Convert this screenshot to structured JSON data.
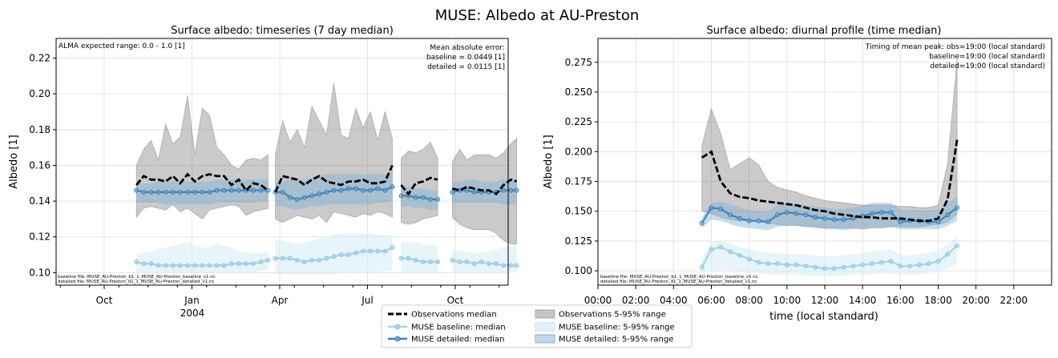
{
  "suptitle": "MUSE: Albedo at AU-Preston",
  "colors": {
    "obs": "#000000",
    "obs_band": "#808080",
    "baseline": "#a6d4e8",
    "baseline_band": "#d7ecf5",
    "detailed": "#3a86bf",
    "detailed_band": "#7fb1d6",
    "grid": "#e3e3e3"
  },
  "legend": {
    "obs_median": "Observations median",
    "baseline_median": "MUSE baseline: median",
    "detailed_median": "MUSE detailed: median",
    "obs_range": "Observations 5-95% range",
    "baseline_range": "MUSE baseline: 5-95% range",
    "detailed_range": "MUSE detailed: 5-95% range"
  },
  "chart_data": [
    {
      "type": "line",
      "title": "Surface albedo: timeseries (7 day median)",
      "xlabel": "",
      "ylabel": "Albedo [1]",
      "ylim": [
        0.093,
        0.231
      ],
      "yticks": [
        0.1,
        0.12,
        0.14,
        0.16,
        0.18,
        0.2,
        0.22
      ],
      "ytick_labels": [
        "0.10",
        "0.12",
        "0.14",
        "0.16",
        "0.18",
        "0.20",
        "0.22"
      ],
      "xticks": [
        {
          "label": "Oct",
          "month": 0
        },
        {
          "label": "Jan",
          "month": 3
        },
        {
          "label": "Apr",
          "month": 6
        },
        {
          "label": "Jul",
          "month": 9
        },
        {
          "label": "Oct",
          "month": 12
        }
      ],
      "year_label": "2004",
      "grid": true,
      "annot_left": "ALMA expected range: 0.0 - 1.0 [1]",
      "annot_right": [
        "Mean absolute error:",
        "baseline = 0.0449 [1]",
        "detailed = 0.0115 [1]"
      ],
      "files": [
        "baseline file: MUSE_AU-Preston_b1_1_MUSE_AU-Preston_baseline_v1.nc",
        "detailed file: MUSE_AU-Preston_d1_1_MUSE_AU-Preston_detailed_v1.nc"
      ],
      "segments": [
        {
          "x": [
            1.1,
            1.35,
            1.6,
            1.85,
            2.1,
            2.35,
            2.6,
            2.85,
            3.1,
            3.35,
            3.6,
            3.85,
            4.1,
            4.35,
            4.6,
            4.85,
            5.1,
            5.35,
            5.6
          ],
          "obs": [
            0.149,
            0.154,
            0.152,
            0.152,
            0.151,
            0.154,
            0.15,
            0.155,
            0.151,
            0.154,
            0.155,
            0.154,
            0.154,
            0.149,
            0.152,
            0.146,
            0.15,
            0.149,
            0.146
          ],
          "obs_lo": [
            0.131,
            0.136,
            0.137,
            0.136,
            0.135,
            0.138,
            0.134,
            0.136,
            0.133,
            0.13,
            0.135,
            0.136,
            0.137,
            0.138,
            0.137,
            0.132,
            0.134,
            0.135,
            0.136
          ],
          "obs_hi": [
            0.16,
            0.169,
            0.174,
            0.163,
            0.183,
            0.172,
            0.176,
            0.199,
            0.166,
            0.192,
            0.188,
            0.17,
            0.166,
            0.16,
            0.158,
            0.163,
            0.164,
            0.163,
            0.166
          ],
          "det": [
            0.146,
            0.145,
            0.145,
            0.145,
            0.145,
            0.145,
            0.145,
            0.145,
            0.145,
            0.145,
            0.145,
            0.146,
            0.146,
            0.146,
            0.146,
            0.146,
            0.146,
            0.146,
            0.146
          ],
          "det_lo": [
            0.139,
            0.139,
            0.139,
            0.139,
            0.138,
            0.138,
            0.138,
            0.138,
            0.138,
            0.138,
            0.138,
            0.139,
            0.139,
            0.139,
            0.139,
            0.139,
            0.139,
            0.14,
            0.14
          ],
          "det_hi": [
            0.15,
            0.15,
            0.15,
            0.151,
            0.151,
            0.151,
            0.151,
            0.151,
            0.151,
            0.151,
            0.151,
            0.152,
            0.152,
            0.152,
            0.152,
            0.152,
            0.152,
            0.152,
            0.152
          ],
          "base": [
            0.106,
            0.105,
            0.105,
            0.104,
            0.104,
            0.104,
            0.104,
            0.104,
            0.104,
            0.104,
            0.104,
            0.104,
            0.104,
            0.105,
            0.105,
            0.105,
            0.105,
            0.106,
            0.107
          ],
          "base_lo": [
            0.1,
            0.1,
            0.1,
            0.1,
            0.1,
            0.1,
            0.1,
            0.1,
            0.1,
            0.1,
            0.1,
            0.1,
            0.1,
            0.1,
            0.1,
            0.1,
            0.1,
            0.101,
            0.101
          ],
          "base_hi": [
            0.11,
            0.111,
            0.112,
            0.113,
            0.114,
            0.115,
            0.116,
            0.117,
            0.115,
            0.114,
            0.114,
            0.116,
            0.115,
            0.114,
            0.112,
            0.111,
            0.111,
            0.111,
            0.112
          ]
        },
        {
          "x": [
            5.85,
            6.1,
            6.35,
            6.6,
            6.85,
            7.1,
            7.35,
            7.6,
            7.85,
            8.1,
            8.35,
            8.6,
            8.85,
            9.1,
            9.35,
            9.6,
            9.85
          ],
          "obs": [
            0.145,
            0.154,
            0.153,
            0.152,
            0.149,
            0.152,
            0.154,
            0.151,
            0.15,
            0.149,
            0.151,
            0.151,
            0.152,
            0.15,
            0.15,
            0.151,
            0.16
          ],
          "obs_lo": [
            0.13,
            0.128,
            0.13,
            0.132,
            0.131,
            0.13,
            0.132,
            0.128,
            0.134,
            0.133,
            0.132,
            0.131,
            0.133,
            0.132,
            0.134,
            0.133,
            0.131
          ],
          "obs_hi": [
            0.166,
            0.185,
            0.173,
            0.18,
            0.17,
            0.193,
            0.185,
            0.177,
            0.206,
            0.177,
            0.175,
            0.192,
            0.181,
            0.19,
            0.174,
            0.19,
            0.175
          ],
          "det": [
            0.145,
            0.145,
            0.142,
            0.141,
            0.142,
            0.143,
            0.144,
            0.145,
            0.146,
            0.146,
            0.147,
            0.147,
            0.146,
            0.146,
            0.147,
            0.146,
            0.148
          ],
          "det_lo": [
            0.137,
            0.137,
            0.136,
            0.135,
            0.136,
            0.137,
            0.137,
            0.138,
            0.138,
            0.138,
            0.138,
            0.138,
            0.138,
            0.138,
            0.139,
            0.139,
            0.14
          ],
          "det_hi": [
            0.151,
            0.151,
            0.152,
            0.152,
            0.152,
            0.153,
            0.154,
            0.155,
            0.155,
            0.155,
            0.155,
            0.155,
            0.155,
            0.155,
            0.155,
            0.155,
            0.156
          ],
          "base": [
            0.108,
            0.108,
            0.108,
            0.107,
            0.106,
            0.107,
            0.107,
            0.108,
            0.109,
            0.11,
            0.11,
            0.111,
            0.112,
            0.112,
            0.112,
            0.112,
            0.114
          ],
          "base_lo": [
            0.099,
            0.099,
            0.099,
            0.099,
            0.099,
            0.099,
            0.099,
            0.099,
            0.099,
            0.1,
            0.1,
            0.1,
            0.1,
            0.1,
            0.1,
            0.101,
            0.101
          ],
          "base_hi": [
            0.118,
            0.118,
            0.117,
            0.116,
            0.117,
            0.118,
            0.119,
            0.12,
            0.121,
            0.122,
            0.122,
            0.122,
            0.122,
            0.122,
            0.121,
            0.121,
            0.121
          ]
        },
        {
          "x": [
            10.15,
            10.4,
            10.65,
            10.9,
            11.15,
            11.4
          ],
          "obs": [
            0.149,
            0.144,
            0.15,
            0.151,
            0.153,
            0.152
          ],
          "obs_lo": [
            0.128,
            0.127,
            0.128,
            0.13,
            0.131,
            0.132
          ],
          "obs_hi": [
            0.164,
            0.168,
            0.167,
            0.169,
            0.173,
            0.164
          ],
          "det": [
            0.143,
            0.143,
            0.142,
            0.142,
            0.141,
            0.141
          ],
          "det_lo": [
            0.137,
            0.137,
            0.136,
            0.136,
            0.135,
            0.135
          ],
          "det_hi": [
            0.147,
            0.148,
            0.147,
            0.147,
            0.146,
            0.146
          ],
          "base": [
            0.108,
            0.108,
            0.107,
            0.106,
            0.106,
            0.106
          ],
          "base_lo": [
            0.101,
            0.1,
            0.1,
            0.1,
            0.1,
            0.1
          ],
          "base_hi": [
            0.117,
            0.117,
            0.117,
            0.116,
            0.115,
            0.115
          ]
        },
        {
          "x": [
            11.9,
            12.15,
            12.4,
            12.65,
            12.9,
            13.15,
            13.4,
            13.65,
            13.9,
            14.1
          ],
          "obs": [
            0.147,
            0.146,
            0.148,
            0.147,
            0.146,
            0.146,
            0.144,
            0.149,
            0.152,
            0.151
          ],
          "obs_lo": [
            0.131,
            0.127,
            0.125,
            0.124,
            0.124,
            0.124,
            0.122,
            0.118,
            0.116,
            0.116
          ],
          "obs_hi": [
            0.162,
            0.169,
            0.163,
            0.166,
            0.166,
            0.166,
            0.164,
            0.167,
            0.172,
            0.175
          ],
          "det": [
            0.145,
            0.146,
            0.146,
            0.145,
            0.145,
            0.145,
            0.145,
            0.146,
            0.146,
            0.146
          ],
          "det_lo": [
            0.139,
            0.139,
            0.139,
            0.139,
            0.139,
            0.139,
            0.139,
            0.138,
            0.138,
            0.138
          ],
          "det_hi": [
            0.151,
            0.151,
            0.152,
            0.152,
            0.151,
            0.151,
            0.151,
            0.152,
            0.152,
            0.152
          ],
          "base": [
            0.107,
            0.106,
            0.106,
            0.105,
            0.106,
            0.105,
            0.105,
            0.104,
            0.104,
            0.104
          ],
          "base_lo": [
            0.1,
            0.1,
            0.1,
            0.1,
            0.1,
            0.1,
            0.1,
            0.1,
            0.1,
            0.1
          ],
          "base_hi": [
            0.113,
            0.112,
            0.112,
            0.111,
            0.111,
            0.112,
            0.113,
            0.114,
            0.115,
            0.116
          ]
        }
      ]
    },
    {
      "type": "line",
      "title": "Surface albedo: diurnal profile (time median)",
      "xlabel": "time (local standard)",
      "ylabel": "Albedo [1]",
      "xlim": [
        0,
        24
      ],
      "ylim": [
        0.088,
        0.295
      ],
      "xticks": [
        0,
        2,
        4,
        6,
        8,
        10,
        12,
        14,
        16,
        18,
        20,
        22
      ],
      "xtick_labels": [
        "00:00",
        "02:00",
        "04:00",
        "06:00",
        "08:00",
        "10:00",
        "12:00",
        "14:00",
        "16:00",
        "18:00",
        "20:00",
        "22:00"
      ],
      "yticks": [
        0.1,
        0.125,
        0.15,
        0.175,
        0.2,
        0.225,
        0.25,
        0.275
      ],
      "ytick_labels": [
        "0.100",
        "0.125",
        "0.150",
        "0.175",
        "0.200",
        "0.225",
        "0.250",
        "0.275"
      ],
      "grid": true,
      "annot_right": [
        "Timing of mean peak: obs=19:00 (local standard)",
        "baseline=19:00 (local standard)",
        "detailed=19:00 (local standard)"
      ],
      "files": [
        "baseline file: MUSE_AU-Preston_b1_1_MUSE_AU-Preston_baseline_v1.nc",
        "detailed file: MUSE_AU-Preston_d1_1_MUSE_AU-Preston_detailed_v1.nc"
      ],
      "x": [
        5.5,
        6.0,
        6.5,
        7.0,
        7.5,
        8.0,
        8.5,
        9.0,
        9.5,
        10.0,
        10.5,
        11.0,
        11.5,
        12.0,
        12.5,
        13.0,
        13.5,
        14.0,
        14.5,
        15.0,
        15.5,
        16.0,
        16.5,
        17.0,
        17.5,
        18.0,
        18.5,
        19.0
      ],
      "obs": [
        0.195,
        0.2,
        0.175,
        0.165,
        0.162,
        0.161,
        0.159,
        0.158,
        0.157,
        0.156,
        0.155,
        0.153,
        0.151,
        0.15,
        0.148,
        0.147,
        0.146,
        0.145,
        0.145,
        0.144,
        0.144,
        0.144,
        0.143,
        0.142,
        0.142,
        0.144,
        0.16,
        0.21
      ],
      "obs_lo": [
        0.15,
        0.148,
        0.145,
        0.143,
        0.142,
        0.142,
        0.141,
        0.14,
        0.139,
        0.138,
        0.138,
        0.137,
        0.137,
        0.136,
        0.136,
        0.136,
        0.136,
        0.135,
        0.136,
        0.136,
        0.137,
        0.137,
        0.137,
        0.137,
        0.138,
        0.139,
        0.141,
        0.148
      ],
      "obs_hi": [
        0.205,
        0.236,
        0.215,
        0.185,
        0.19,
        0.195,
        0.189,
        0.175,
        0.17,
        0.168,
        0.166,
        0.163,
        0.161,
        0.159,
        0.158,
        0.157,
        0.156,
        0.155,
        0.155,
        0.155,
        0.155,
        0.154,
        0.154,
        0.153,
        0.153,
        0.155,
        0.19,
        0.278
      ],
      "det": [
        0.14,
        0.153,
        0.152,
        0.147,
        0.144,
        0.142,
        0.142,
        0.141,
        0.147,
        0.149,
        0.148,
        0.147,
        0.145,
        0.144,
        0.143,
        0.143,
        0.144,
        0.146,
        0.148,
        0.149,
        0.149,
        0.141,
        0.142,
        0.142,
        0.141,
        0.141,
        0.147,
        0.153
      ],
      "det_lo": [
        0.136,
        0.143,
        0.142,
        0.139,
        0.137,
        0.136,
        0.135,
        0.134,
        0.137,
        0.138,
        0.138,
        0.137,
        0.136,
        0.135,
        0.135,
        0.134,
        0.135,
        0.136,
        0.137,
        0.137,
        0.137,
        0.135,
        0.135,
        0.135,
        0.135,
        0.135,
        0.138,
        0.142
      ],
      "det_hi": [
        0.145,
        0.157,
        0.158,
        0.156,
        0.153,
        0.151,
        0.15,
        0.15,
        0.155,
        0.157,
        0.156,
        0.155,
        0.154,
        0.153,
        0.152,
        0.152,
        0.153,
        0.155,
        0.157,
        0.157,
        0.157,
        0.151,
        0.151,
        0.151,
        0.151,
        0.151,
        0.156,
        0.163
      ],
      "base": [
        0.103,
        0.118,
        0.12,
        0.116,
        0.113,
        0.11,
        0.107,
        0.106,
        0.106,
        0.105,
        0.105,
        0.104,
        0.103,
        0.102,
        0.102,
        0.103,
        0.104,
        0.105,
        0.106,
        0.107,
        0.108,
        0.104,
        0.104,
        0.105,
        0.106,
        0.108,
        0.114,
        0.121
      ],
      "base_lo": [
        0.098,
        0.101,
        0.101,
        0.1,
        0.099,
        0.098,
        0.098,
        0.097,
        0.097,
        0.097,
        0.097,
        0.096,
        0.096,
        0.096,
        0.096,
        0.096,
        0.097,
        0.097,
        0.097,
        0.098,
        0.098,
        0.097,
        0.097,
        0.097,
        0.098,
        0.099,
        0.102,
        0.106
      ],
      "base_hi": [
        0.11,
        0.124,
        0.125,
        0.123,
        0.12,
        0.118,
        0.116,
        0.115,
        0.115,
        0.114,
        0.114,
        0.114,
        0.113,
        0.112,
        0.112,
        0.113,
        0.114,
        0.115,
        0.116,
        0.117,
        0.118,
        0.113,
        0.113,
        0.114,
        0.115,
        0.117,
        0.122,
        0.128
      ]
    }
  ]
}
